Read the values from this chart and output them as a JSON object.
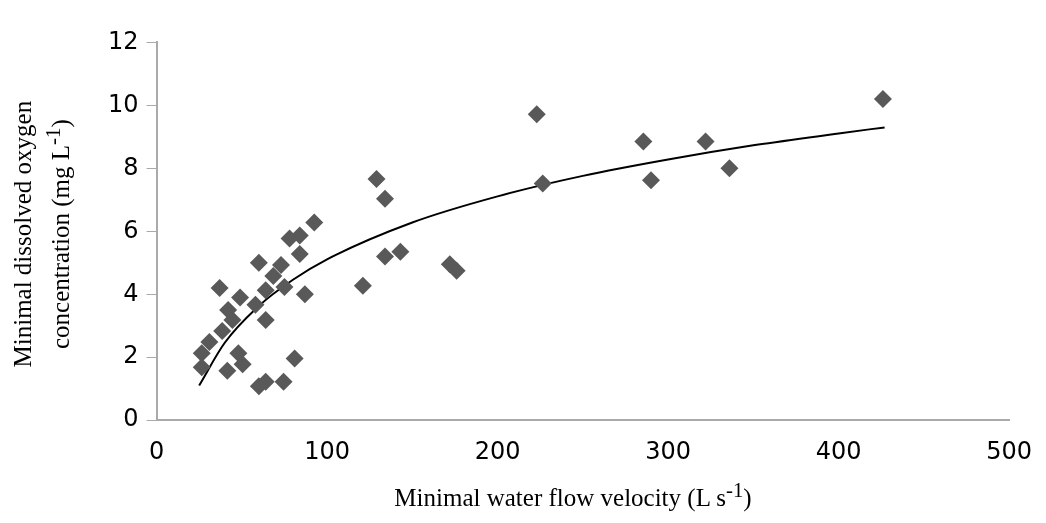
{
  "chart_data": {
    "type": "scatter",
    "xlabel": "Minimal water flow velocity (L s$^{-1}$)",
    "ylabel": "Minimal dissolved oxygen\nconcentration (mg L$^{-1}$)",
    "xlim": [
      0,
      500
    ],
    "xticks": [
      0,
      100,
      200,
      300,
      400,
      500
    ],
    "ylim": [
      0,
      12
    ],
    "yticks": [
      0,
      2,
      4,
      6,
      8,
      10,
      12
    ],
    "grid": false,
    "legend": false,
    "marker": "diamond",
    "series": [
      {
        "color": "#595959",
        "x": [
          92.5,
          84,
          78,
          84,
          60,
          73,
          37,
          87,
          49,
          64,
          75,
          58,
          64,
          44.5,
          38.5,
          31,
          26.5,
          26.5,
          48,
          50.5,
          41.5,
          81,
          60,
          64,
          74.5,
          68.5,
          42,
          129,
          134,
          223,
          226.5,
          285.5,
          290,
          322,
          336,
          426,
          134,
          143,
          172,
          176,
          121
        ],
        "values": [
          6.28,
          5.87,
          5.77,
          5.28,
          5.0,
          4.93,
          4.2,
          4.0,
          3.9,
          4.13,
          4.23,
          3.67,
          3.18,
          3.18,
          2.83,
          2.48,
          2.13,
          1.68,
          2.13,
          1.78,
          1.57,
          1.96,
          1.08,
          1.22,
          1.22,
          4.58,
          3.5,
          7.66,
          7.03,
          9.72,
          7.52,
          8.85,
          7.62,
          8.85,
          8.0,
          10.2,
          5.2,
          5.35,
          4.95,
          4.75,
          4.27
        ]
      },
      {
        "type": "line",
        "color": "#000000",
        "marker": "none",
        "x": [
          25,
          40,
          60,
          80,
          100,
          150,
          200,
          250,
          300,
          350,
          400,
          427
        ],
        "values": [
          1.1,
          2.46,
          3.63,
          4.46,
          5.11,
          6.28,
          7.11,
          7.76,
          8.28,
          8.73,
          9.11,
          9.3
        ]
      }
    ]
  }
}
